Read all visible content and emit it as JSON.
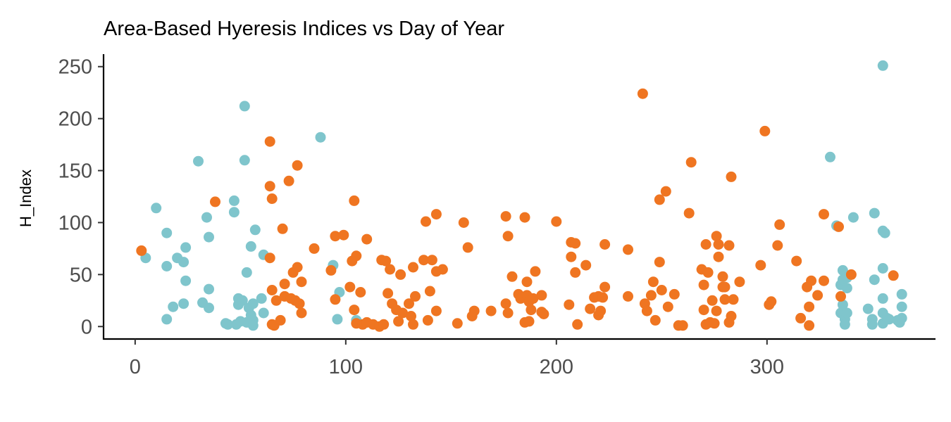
{
  "chart_data": {
    "type": "scatter",
    "title": "Area-Based Hyeresis Indices vs Day of Year",
    "xlabel": "",
    "ylabel": "H_Index",
    "xlim": [
      -15,
      380
    ],
    "ylim": [
      -12,
      262
    ],
    "x_ticks": [
      "0",
      "100",
      "200",
      "300"
    ],
    "y_ticks": [
      "0",
      "50",
      "100",
      "150",
      "200",
      "250"
    ],
    "grid": false,
    "legend": "none",
    "series": [
      {
        "color": "#7fc5cc",
        "points": [
          [
            5,
            66
          ],
          [
            10,
            114
          ],
          [
            15,
            90
          ],
          [
            15,
            58
          ],
          [
            15,
            7
          ],
          [
            18,
            19
          ],
          [
            20,
            66
          ],
          [
            23,
            22
          ],
          [
            23,
            62
          ],
          [
            24,
            44
          ],
          [
            24,
            76
          ],
          [
            30,
            159
          ],
          [
            32,
            23
          ],
          [
            34,
            105
          ],
          [
            35,
            86
          ],
          [
            35,
            18
          ],
          [
            35,
            36
          ],
          [
            43,
            3
          ],
          [
            44,
            2
          ],
          [
            47,
            110
          ],
          [
            47,
            121
          ],
          [
            48,
            2
          ],
          [
            49,
            27
          ],
          [
            49,
            21
          ],
          [
            50,
            5
          ],
          [
            51,
            25
          ],
          [
            52,
            160
          ],
          [
            52,
            212
          ],
          [
            53,
            52
          ],
          [
            53,
            4
          ],
          [
            54,
            18
          ],
          [
            55,
            77
          ],
          [
            55,
            11
          ],
          [
            56,
            22
          ],
          [
            56,
            6
          ],
          [
            56,
            1
          ],
          [
            57,
            93
          ],
          [
            60,
            27
          ],
          [
            61,
            69
          ],
          [
            61,
            13
          ],
          [
            88,
            182
          ],
          [
            94,
            59
          ],
          [
            96,
            7
          ],
          [
            97,
            33
          ],
          [
            105,
            6
          ],
          [
            330,
            163
          ],
          [
            333,
            97
          ],
          [
            335,
            13
          ],
          [
            335,
            40
          ],
          [
            336,
            45
          ],
          [
            336,
            54
          ],
          [
            336,
            21
          ],
          [
            337,
            7
          ],
          [
            337,
            2
          ],
          [
            338,
            37
          ],
          [
            338,
            13
          ],
          [
            338,
            47
          ],
          [
            341,
            105
          ],
          [
            348,
            17
          ],
          [
            350,
            7
          ],
          [
            350,
            2
          ],
          [
            351,
            109
          ],
          [
            351,
            45
          ],
          [
            355,
            13
          ],
          [
            355,
            3
          ],
          [
            355,
            27
          ],
          [
            355,
            56
          ],
          [
            355,
            92
          ],
          [
            355,
            251
          ],
          [
            356,
            90
          ],
          [
            357,
            8
          ],
          [
            358,
            7
          ],
          [
            362,
            6
          ],
          [
            363,
            4
          ],
          [
            364,
            19
          ],
          [
            364,
            31
          ],
          [
            364,
            8
          ]
        ]
      },
      {
        "color": "#ef7521",
        "points": [
          [
            3,
            73
          ],
          [
            38,
            120
          ],
          [
            64,
            178
          ],
          [
            64,
            135
          ],
          [
            65,
            123
          ],
          [
            64,
            66
          ],
          [
            65,
            35
          ],
          [
            65,
            2
          ],
          [
            66,
            1
          ],
          [
            67,
            25
          ],
          [
            69,
            6
          ],
          [
            70,
            94
          ],
          [
            71,
            41
          ],
          [
            71,
            29
          ],
          [
            73,
            140
          ],
          [
            74,
            27
          ],
          [
            75,
            52
          ],
          [
            76,
            25
          ],
          [
            77,
            155
          ],
          [
            77,
            57
          ],
          [
            78,
            22
          ],
          [
            79,
            13
          ],
          [
            79,
            43
          ],
          [
            85,
            75
          ],
          [
            93,
            54
          ],
          [
            95,
            26
          ],
          [
            95,
            87
          ],
          [
            99,
            88
          ],
          [
            102,
            38
          ],
          [
            103,
            63
          ],
          [
            104,
            121
          ],
          [
            104,
            16
          ],
          [
            105,
            68
          ],
          [
            105,
            3
          ],
          [
            107,
            33
          ],
          [
            108,
            2
          ],
          [
            110,
            84
          ],
          [
            110,
            4
          ],
          [
            113,
            2
          ],
          [
            116,
            0
          ],
          [
            117,
            64
          ],
          [
            118,
            2
          ],
          [
            119,
            63
          ],
          [
            120,
            32
          ],
          [
            121,
            55
          ],
          [
            122,
            22
          ],
          [
            124,
            16
          ],
          [
            125,
            5
          ],
          [
            126,
            50
          ],
          [
            127,
            13
          ],
          [
            130,
            22
          ],
          [
            131,
            10
          ],
          [
            132,
            57
          ],
          [
            132,
            2
          ],
          [
            133,
            29
          ],
          [
            137,
            64
          ],
          [
            138,
            101
          ],
          [
            139,
            6
          ],
          [
            140,
            34
          ],
          [
            141,
            64
          ],
          [
            143,
            108
          ],
          [
            143,
            15
          ],
          [
            143,
            53
          ],
          [
            146,
            55
          ],
          [
            153,
            3
          ],
          [
            156,
            100
          ],
          [
            158,
            76
          ],
          [
            160,
            10
          ],
          [
            161,
            15
          ],
          [
            169,
            15
          ],
          [
            176,
            106
          ],
          [
            176,
            22
          ],
          [
            177,
            13
          ],
          [
            177,
            87
          ],
          [
            179,
            48
          ],
          [
            182,
            31
          ],
          [
            183,
            27
          ],
          [
            185,
            105
          ],
          [
            185,
            4
          ],
          [
            186,
            43
          ],
          [
            186,
            30
          ],
          [
            187,
            24
          ],
          [
            187,
            5
          ],
          [
            188,
            16
          ],
          [
            189,
            27
          ],
          [
            190,
            53
          ],
          [
            193,
            30
          ],
          [
            193,
            14
          ],
          [
            194,
            12
          ],
          [
            200,
            101
          ],
          [
            206,
            21
          ],
          [
            207,
            81
          ],
          [
            207,
            67
          ],
          [
            209,
            80
          ],
          [
            209,
            52
          ],
          [
            210,
            2
          ],
          [
            214,
            59
          ],
          [
            216,
            17
          ],
          [
            218,
            28
          ],
          [
            220,
            11
          ],
          [
            220,
            29
          ],
          [
            221,
            15
          ],
          [
            222,
            28
          ],
          [
            223,
            38
          ],
          [
            223,
            79
          ],
          [
            234,
            74
          ],
          [
            234,
            29
          ],
          [
            241,
            224
          ],
          [
            242,
            22
          ],
          [
            243,
            15
          ],
          [
            245,
            30
          ],
          [
            246,
            43
          ],
          [
            247,
            6
          ],
          [
            249,
            122
          ],
          [
            249,
            62
          ],
          [
            250,
            35
          ],
          [
            252,
            130
          ],
          [
            253,
            19
          ],
          [
            256,
            31
          ],
          [
            258,
            1
          ],
          [
            260,
            1
          ],
          [
            263,
            109
          ],
          [
            264,
            158
          ],
          [
            269,
            55
          ],
          [
            270,
            40
          ],
          [
            270,
            16
          ],
          [
            271,
            79
          ],
          [
            271,
            2
          ],
          [
            272,
            52
          ],
          [
            273,
            4
          ],
          [
            274,
            25
          ],
          [
            275,
            3
          ],
          [
            276,
            87
          ],
          [
            276,
            15
          ],
          [
            277,
            79
          ],
          [
            277,
            67
          ],
          [
            279,
            48
          ],
          [
            279,
            38
          ],
          [
            280,
            26
          ],
          [
            280,
            38
          ],
          [
            282,
            78
          ],
          [
            282,
            4
          ],
          [
            283,
            10
          ],
          [
            283,
            144
          ],
          [
            284,
            26
          ],
          [
            287,
            43
          ],
          [
            297,
            59
          ],
          [
            299,
            188
          ],
          [
            301,
            21
          ],
          [
            302,
            24
          ],
          [
            305,
            78
          ],
          [
            306,
            98
          ],
          [
            314,
            63
          ],
          [
            316,
            8
          ],
          [
            319,
            38
          ],
          [
            320,
            19
          ],
          [
            320,
            1
          ],
          [
            321,
            44
          ],
          [
            324,
            30
          ],
          [
            327,
            108
          ],
          [
            327,
            44
          ],
          [
            334,
            96
          ],
          [
            335,
            29
          ],
          [
            340,
            50
          ],
          [
            360,
            49
          ]
        ]
      }
    ]
  }
}
